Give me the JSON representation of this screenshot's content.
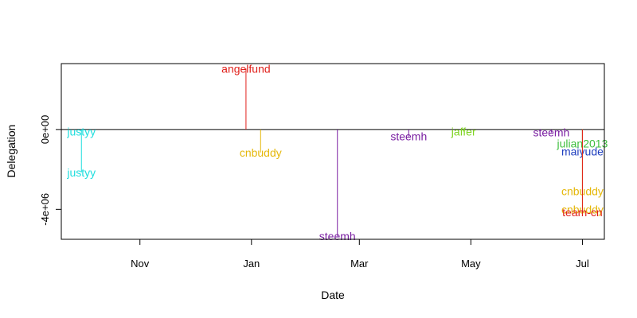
{
  "chart_data": {
    "type": "scatter",
    "title": "",
    "xlabel": "Date",
    "ylabel": "Delegation",
    "xlim": [
      "2017-09-19",
      "2018-07-13"
    ],
    "ylim": [
      -5500000,
      3300000
    ],
    "x_ticks": [
      {
        "date": "2017-11-01",
        "label": "Nov"
      },
      {
        "date": "2018-01-01",
        "label": "Jan"
      },
      {
        "date": "2018-03-01",
        "label": "Mar"
      },
      {
        "date": "2018-05-01",
        "label": "May"
      },
      {
        "date": "2018-07-01",
        "label": "Jul"
      }
    ],
    "y_ticks": [
      {
        "value": 0,
        "label": "0e+00"
      },
      {
        "value": -4000000,
        "label": "-4e+06"
      }
    ],
    "reference_line": 0,
    "points": [
      {
        "date": "2017-09-30",
        "delegation": -100000,
        "label": "justyy",
        "color": "#1fdede"
      },
      {
        "date": "2017-09-30",
        "delegation": -2150000,
        "label": "justyy",
        "color": "#1fdede"
      },
      {
        "date": "2017-12-29",
        "delegation": 3050000,
        "label": "angelfund",
        "color": "#e0201b"
      },
      {
        "date": "2018-01-06",
        "delegation": -1150000,
        "label": "cnbuddy",
        "color": "#e5b80b"
      },
      {
        "date": "2018-02-17",
        "delegation": -5350000,
        "label": "steemh",
        "color": "#7a1fa2"
      },
      {
        "date": "2018-03-28",
        "delegation": -350000,
        "label": "steemh",
        "color": "#7a1fa2"
      },
      {
        "date": "2018-04-27",
        "delegation": -100000,
        "label": "jaffer",
        "color": "#7ed321"
      },
      {
        "date": "2018-06-14",
        "delegation": -150000,
        "label": "steemh",
        "color": "#7a1fa2"
      },
      {
        "date": "2018-07-01",
        "delegation": -700000,
        "label": "julian2013",
        "color": "#3fbf3f"
      },
      {
        "date": "2018-07-01",
        "delegation": -1100000,
        "label": "maiyude",
        "color": "#1f3fbf"
      },
      {
        "date": "2018-07-01",
        "delegation": -3100000,
        "label": "cnbuddy",
        "color": "#e5b80b"
      },
      {
        "date": "2018-07-01",
        "delegation": -4000000,
        "label": "cnbuddy",
        "color": "#e5b80b"
      },
      {
        "date": "2018-07-01",
        "delegation": -4150000,
        "label": "team-cn",
        "color": "#e0201b"
      }
    ]
  }
}
